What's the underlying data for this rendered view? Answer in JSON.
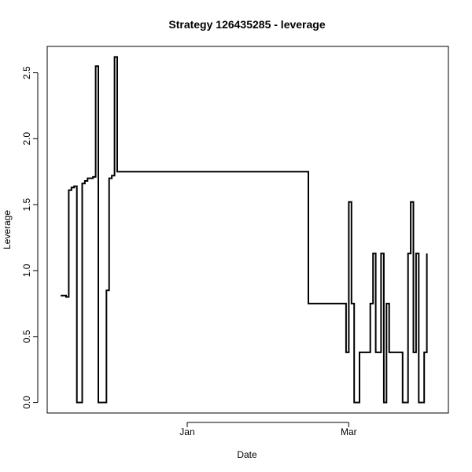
{
  "chart_data": {
    "type": "line",
    "step": true,
    "title": "Strategy 126435285 - leverage",
    "xlabel": "Date",
    "ylabel": "Leverage",
    "x_axis_type": "date",
    "xlim": [
      "2011-11-10",
      "2012-04-07"
    ],
    "ylim": [
      -0.08,
      2.7
    ],
    "x_ticks": [
      {
        "value": "2012-01-01",
        "label": "Jan"
      },
      {
        "value": "2012-03-01",
        "label": "Mar"
      }
    ],
    "y_ticks": [
      {
        "value": 0.0,
        "label": "0.0"
      },
      {
        "value": 0.5,
        "label": "0.5"
      },
      {
        "value": 1.0,
        "label": "1.0"
      },
      {
        "value": 1.5,
        "label": "1.5"
      },
      {
        "value": 2.0,
        "label": "2.0"
      },
      {
        "value": 2.5,
        "label": "2.5"
      }
    ],
    "grid": false,
    "legend": "none",
    "series": [
      {
        "color": "#000000",
        "points": [
          {
            "x": "2011-11-15",
            "y": 0.81
          },
          {
            "x": "2011-11-17",
            "y": 0.8
          },
          {
            "x": "2011-11-18",
            "y": 1.61
          },
          {
            "x": "2011-11-19",
            "y": 1.63
          },
          {
            "x": "2011-11-20",
            "y": 1.64
          },
          {
            "x": "2011-11-21",
            "y": 0.0
          },
          {
            "x": "2011-11-23",
            "y": 1.66
          },
          {
            "x": "2011-11-24",
            "y": 1.68
          },
          {
            "x": "2011-11-25",
            "y": 1.7
          },
          {
            "x": "2011-11-27",
            "y": 1.71
          },
          {
            "x": "2011-11-28",
            "y": 2.55
          },
          {
            "x": "2011-11-29",
            "y": 0.0
          },
          {
            "x": "2011-12-02",
            "y": 0.85
          },
          {
            "x": "2011-12-03",
            "y": 1.7
          },
          {
            "x": "2011-12-04",
            "y": 1.72
          },
          {
            "x": "2011-12-05",
            "y": 2.62
          },
          {
            "x": "2011-12-06",
            "y": 1.75
          },
          {
            "x": "2012-02-15",
            "y": 0.75
          },
          {
            "x": "2012-02-29",
            "y": 0.38
          },
          {
            "x": "2012-03-01",
            "y": 1.52
          },
          {
            "x": "2012-03-02",
            "y": 0.75
          },
          {
            "x": "2012-03-03",
            "y": 0.0
          },
          {
            "x": "2012-03-05",
            "y": 0.38
          },
          {
            "x": "2012-03-09",
            "y": 0.75
          },
          {
            "x": "2012-03-10",
            "y": 1.13
          },
          {
            "x": "2012-03-11",
            "y": 0.38
          },
          {
            "x": "2012-03-13",
            "y": 1.13
          },
          {
            "x": "2012-03-14",
            "y": 0.0
          },
          {
            "x": "2012-03-15",
            "y": 0.75
          },
          {
            "x": "2012-03-16",
            "y": 0.38
          },
          {
            "x": "2012-03-21",
            "y": 0.0
          },
          {
            "x": "2012-03-23",
            "y": 1.13
          },
          {
            "x": "2012-03-24",
            "y": 1.52
          },
          {
            "x": "2012-03-25",
            "y": 0.38
          },
          {
            "x": "2012-03-26",
            "y": 1.13
          },
          {
            "x": "2012-03-27",
            "y": 0.0
          },
          {
            "x": "2012-03-29",
            "y": 0.38
          },
          {
            "x": "2012-03-30",
            "y": 1.13
          }
        ]
      }
    ]
  }
}
